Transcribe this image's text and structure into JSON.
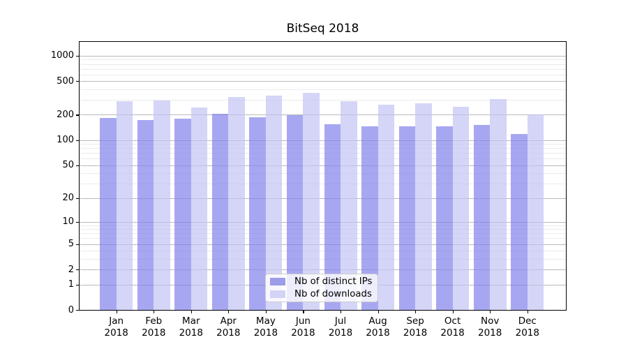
{
  "chart_data": {
    "type": "bar",
    "title": "BitSeq 2018",
    "categories": [
      "Jan 2018",
      "Feb 2018",
      "Mar 2018",
      "Apr 2018",
      "May 2018",
      "Jun 2018",
      "Jul 2018",
      "Aug 2018",
      "Sep 2018",
      "Oct 2018",
      "Nov 2018",
      "Dec 2018"
    ],
    "series": [
      {
        "name": "Nb of distinct IPs",
        "bar_color": "rgba(130,130,235,0.7)",
        "legend_color": "#9c9ce9",
        "values": [
          184,
          172,
          181,
          205,
          186,
          197,
          154,
          145,
          147,
          146,
          152,
          118
        ]
      },
      {
        "name": "Nb of downloads",
        "bar_color": "rgba(195,195,243,0.7)",
        "legend_color": "#d3d3f4",
        "values": [
          292,
          296,
          245,
          322,
          340,
          363,
          290,
          265,
          275,
          248,
          306,
          200
        ]
      }
    ],
    "xlabel": "",
    "ylabel": "",
    "yscale": "log1p",
    "yticks": [
      0,
      1,
      2,
      5,
      10,
      20,
      50,
      100,
      200,
      500,
      1000
    ],
    "yticks_minor": [
      3,
      4,
      6,
      7,
      8,
      9,
      30,
      40,
      60,
      70,
      80,
      90,
      300,
      400,
      600,
      700,
      800,
      900
    ],
    "ylim": [
      0,
      1456
    ],
    "grid": true,
    "grid_major_color": "#b9b9b9",
    "grid_minor_color": "#ebebeb",
    "legend_position": "lower center"
  }
}
